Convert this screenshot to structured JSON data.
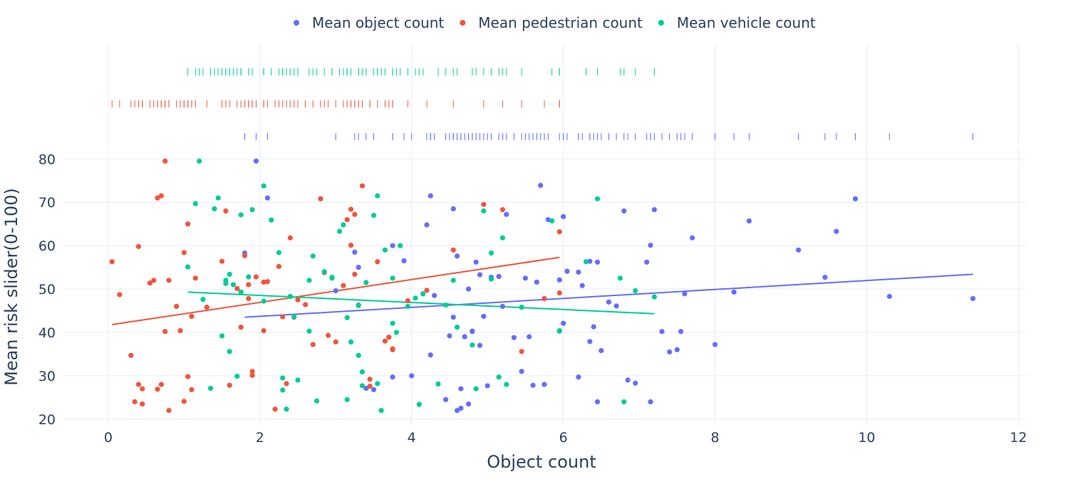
{
  "chart_data": {
    "type": "scatter",
    "title": "",
    "xlabel": "Object count",
    "ylabel": "Mean risk slider(0-100)",
    "xlim": [
      -0.6,
      12.1
    ],
    "ylim": [
      18.5,
      83
    ],
    "xticks": [
      0,
      2,
      4,
      6,
      8,
      10,
      12
    ],
    "yticks": [
      20,
      30,
      40,
      50,
      60,
      70,
      80
    ],
    "grid": true,
    "legend_position": "top-center",
    "marginal": "rug",
    "trendline": "ols",
    "series": [
      {
        "name": "Mean object count",
        "color": "#636efa",
        "x": [
          1.95,
          2.1,
          3.25,
          3.3,
          3.75,
          3.9,
          4.2,
          4.25,
          4.3,
          4.5,
          4.55,
          4.6,
          4.65,
          4.7,
          4.75,
          4.8,
          4.85,
          4.9,
          4.95,
          5.0,
          5.05,
          5.15,
          5.25,
          5.45,
          5.5,
          5.55,
          5.65,
          5.7,
          5.75,
          5.8,
          5.95,
          6.0,
          6.05,
          6.2,
          6.25,
          6.35,
          6.4,
          6.45,
          6.5,
          6.6,
          6.7,
          6.8,
          6.95,
          7.1,
          7.15,
          7.2,
          7.3,
          7.4,
          7.5,
          7.55,
          7.6,
          7.7,
          8.0,
          8.25,
          8.45,
          9.1,
          9.45,
          9.6,
          9.85,
          10.3,
          11.4,
          1.8,
          3.0,
          3.4,
          3.5,
          3.75,
          4.0,
          4.25,
          4.45,
          4.55,
          4.6,
          4.65,
          4.75,
          4.8,
          4.9,
          5.2,
          5.35,
          5.6,
          6.0,
          6.2,
          6.35,
          6.45,
          6.85,
          7.15
        ],
        "y": [
          79.5,
          71.0,
          58.5,
          55.0,
          60.0,
          56.5,
          64.8,
          71.5,
          48.5,
          39.2,
          68.5,
          57.6,
          22.5,
          39.0,
          50.0,
          40.3,
          56.2,
          53.3,
          43.7,
          27.7,
          52.7,
          52.9,
          67.2,
          31.0,
          52.5,
          39.0,
          51.6,
          73.9,
          28.0,
          66.0,
          52.1,
          66.7,
          54.1,
          53.9,
          50.8,
          37.9,
          41.3,
          56.2,
          35.8,
          47.0,
          46.1,
          68.0,
          28.3,
          56.2,
          60.1,
          68.3,
          40.2,
          35.5,
          36.0,
          40.2,
          48.9,
          61.8,
          37.2,
          49.3,
          65.7,
          59.0,
          52.7,
          63.3,
          70.8,
          48.3,
          47.8,
          58.3,
          49.6,
          27.1,
          26.8,
          29.7,
          30.0,
          34.8,
          24.5,
          43.5,
          22.0,
          27.0,
          23.5,
          40.2,
          37.0,
          46.0,
          38.8,
          27.8,
          42.1,
          29.7,
          56.4,
          24.0,
          29.0,
          24.0
        ],
        "trend": {
          "x": [
            1.8,
            11.4
          ],
          "y": [
            43.5,
            53.4
          ]
        }
      },
      {
        "name": "Mean pedestrian count",
        "color": "#ef553b",
        "x": [
          0.05,
          0.3,
          0.35,
          0.4,
          0.45,
          0.6,
          0.65,
          0.7,
          0.75,
          0.8,
          0.9,
          1.0,
          1.05,
          1.1,
          1.15,
          1.3,
          1.5,
          1.6,
          1.7,
          1.8,
          1.85,
          1.9,
          1.95,
          2.05,
          2.1,
          2.2,
          2.3,
          2.4,
          2.5,
          2.6,
          2.7,
          2.8,
          2.9,
          3.0,
          3.1,
          3.15,
          3.2,
          3.25,
          3.3,
          3.35,
          3.45,
          3.55,
          3.7,
          3.75,
          3.95,
          4.2,
          4.55,
          4.95,
          5.2,
          5.45,
          5.75,
          5.95,
          0.4,
          0.45,
          0.65,
          0.7,
          0.75,
          0.8,
          1.0,
          1.05,
          1.1,
          1.55,
          1.75,
          1.85,
          1.9,
          2.05,
          2.25,
          2.35,
          2.45,
          2.85,
          3.2,
          3.25,
          3.45,
          3.65,
          3.75,
          5.95,
          0.15,
          0.55,
          0.95
        ],
        "y": [
          56.3,
          34.7,
          24.0,
          28.0,
          27.0,
          52.0,
          71.0,
          71.5,
          40.2,
          52.0,
          46.0,
          58.4,
          65.0,
          43.7,
          52.5,
          45.8,
          56.4,
          27.8,
          50.1,
          57.7,
          47.8,
          30.1,
          52.8,
          40.4,
          51.7,
          22.3,
          43.6,
          61.8,
          47.5,
          46.4,
          37.2,
          70.8,
          39.3,
          37.8,
          50.8,
          66.0,
          68.4,
          53.4,
          46.3,
          73.8,
          29.2,
          56.3,
          38.9,
          36.0,
          47.3,
          49.7,
          59.0,
          69.5,
          68.3,
          35.6,
          47.8,
          49.1,
          59.8,
          23.5,
          26.9,
          28.0,
          79.5,
          22.0,
          24.1,
          29.8,
          26.8,
          68.0,
          41.2,
          51.0,
          31.0,
          51.6,
          55.2,
          28.2,
          43.5,
          53.8,
          60.1,
          67.2,
          27.6,
          38.0,
          36.2,
          63.2,
          48.7,
          51.4,
          40.4
        ],
        "trend": {
          "x": [
            0.05,
            5.95
          ],
          "y": [
            41.8,
            57.3
          ]
        }
      },
      {
        "name": "Mean vehicle count",
        "color": "#00cc96",
        "x": [
          1.05,
          1.15,
          1.2,
          1.35,
          1.4,
          1.45,
          1.5,
          1.55,
          1.6,
          1.65,
          1.7,
          1.75,
          1.9,
          2.05,
          2.15,
          2.25,
          2.3,
          2.35,
          2.4,
          2.5,
          2.65,
          2.7,
          2.75,
          2.85,
          2.95,
          3.05,
          3.1,
          3.15,
          3.2,
          3.3,
          3.35,
          3.4,
          3.5,
          3.55,
          3.65,
          3.75,
          3.8,
          3.85,
          3.95,
          4.05,
          4.15,
          4.35,
          4.45,
          4.6,
          4.8,
          4.95,
          5.05,
          5.15,
          5.25,
          5.45,
          5.85,
          5.95,
          6.3,
          6.45,
          6.75,
          6.95,
          7.2,
          1.25,
          1.55,
          1.6,
          1.75,
          1.85,
          2.05,
          2.3,
          2.45,
          2.65,
          2.95,
          3.15,
          3.3,
          3.35,
          3.55,
          3.6,
          3.75,
          4.1,
          4.55,
          4.85,
          5.05,
          5.2,
          5.95,
          6.8
        ],
        "y": [
          55.1,
          69.7,
          79.5,
          27.1,
          68.5,
          71.0,
          39.2,
          52.0,
          53.4,
          51.0,
          29.9,
          49.3,
          68.3,
          73.8,
          65.9,
          58.4,
          29.5,
          22.3,
          48.3,
          29.0,
          40.3,
          57.6,
          24.2,
          54.0,
          52.5,
          63.3,
          64.8,
          24.5,
          37.8,
          34.7,
          27.7,
          51.5,
          67.0,
          71.5,
          59.0,
          52.5,
          40.0,
          60.0,
          46.0,
          47.9,
          48.9,
          28.1,
          46.3,
          41.2,
          37.1,
          68.0,
          52.3,
          29.7,
          28.0,
          45.8,
          65.7,
          40.3,
          56.3,
          70.8,
          52.5,
          49.6,
          48.2,
          47.6,
          51.3,
          35.6,
          67.1,
          52.8,
          47.2,
          26.7,
          43.6,
          52.0,
          52.7,
          43.4,
          46.2,
          30.9,
          28.2,
          22.0,
          42.1,
          23.4,
          52.0,
          27.0,
          58.3,
          61.8,
          40.4,
          24.0
        ],
        "trend": {
          "x": [
            1.05,
            7.2
          ],
          "y": [
            49.3,
            44.3
          ]
        }
      }
    ]
  }
}
